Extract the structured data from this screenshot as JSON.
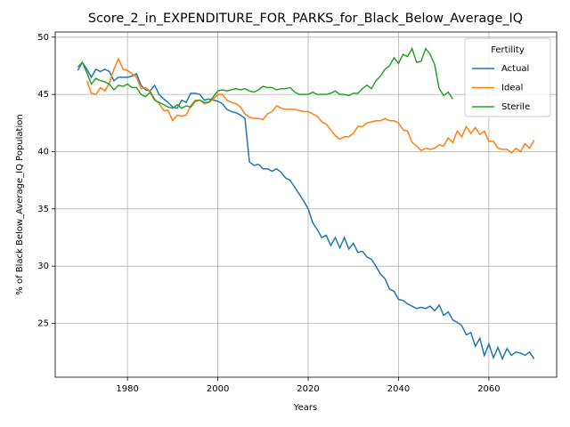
{
  "chart_data": {
    "type": "line",
    "title": "Score_2_in_EXPENDITURE_FOR_PARKS_for_Black_Below_Average_IQ",
    "xlabel": "Years",
    "ylabel": "% of Black Below_Average_IQ Population",
    "legend_title": "Fertility",
    "legend_loc": "upper right",
    "grid": true,
    "xlim": [
      1964,
      2075
    ],
    "ylim": [
      20.3,
      50.45
    ],
    "xticks": [
      1980,
      2000,
      2020,
      2040,
      2060
    ],
    "yticks": [
      25,
      30,
      35,
      40,
      45,
      50
    ],
    "x": [
      1969,
      1970,
      1971,
      1972,
      1973,
      1974,
      1975,
      1976,
      1977,
      1978,
      1979,
      1980,
      1981,
      1982,
      1983,
      1984,
      1985,
      1986,
      1987,
      1988,
      1989,
      1990,
      1991,
      1992,
      1993,
      1994,
      1995,
      1996,
      1997,
      1998,
      1999,
      2000,
      2001,
      2002,
      2003,
      2004,
      2005,
      2006,
      2007,
      2008,
      2009,
      2010,
      2011,
      2012,
      2013,
      2014,
      2015,
      2016,
      2017,
      2018,
      2019,
      2020,
      2021,
      2022,
      2023,
      2024,
      2025,
      2026,
      2027,
      2028,
      2029,
      2030,
      2031,
      2032,
      2033,
      2034,
      2035,
      2036,
      2037,
      2038,
      2039,
      2040,
      2041,
      2042,
      2043,
      2044,
      2045,
      2046,
      2047,
      2048,
      2049,
      2050,
      2051,
      2052,
      2053,
      2054,
      2055,
      2056,
      2057,
      2058,
      2059,
      2060,
      2061,
      2062,
      2063,
      2064,
      2065,
      2066,
      2067,
      2068,
      2069,
      2070
    ],
    "series": [
      {
        "name": "Actual",
        "color": "#1f77b4",
        "values": [
          47.1,
          47.8,
          47.2,
          46.5,
          47.2,
          47.0,
          47.2,
          47.0,
          46.2,
          46.5,
          46.5,
          46.5,
          46.6,
          46.8,
          45.8,
          45.4,
          45.3,
          45.8,
          45.0,
          44.6,
          44.3,
          43.9,
          43.8,
          44.5,
          44.3,
          45.1,
          45.1,
          45.0,
          44.5,
          44.6,
          44.5,
          44.4,
          44.2,
          43.7,
          43.5,
          43.4,
          43.2,
          42.9,
          39.1,
          38.8,
          38.9,
          38.5,
          38.5,
          38.3,
          38.5,
          38.2,
          37.7,
          37.5,
          36.9,
          36.3,
          35.7,
          35.0,
          33.8,
          33.2,
          32.5,
          32.7,
          31.8,
          32.5,
          31.6,
          32.5,
          31.5,
          32.0,
          31.2,
          31.3,
          30.8,
          30.6,
          30.0,
          29.3,
          28.9,
          28.0,
          27.8,
          27.1,
          27.0,
          26.7,
          26.5,
          26.3,
          26.4,
          26.3,
          26.5,
          26.1,
          26.6,
          25.7,
          26.0,
          25.3,
          25.1,
          24.8,
          24.0,
          24.2,
          23.0,
          23.7,
          22.2,
          23.2,
          22.0,
          22.9,
          21.9,
          22.8,
          22.2,
          22.5,
          22.4,
          22.2,
          22.5,
          21.9
        ]
      },
      {
        "name": "Ideal",
        "color": "#ff7f0e",
        "values": [
          null,
          null,
          46.2,
          45.1,
          45.0,
          45.6,
          45.3,
          46.0,
          47.2,
          48.1,
          47.2,
          47.1,
          46.8,
          46.5,
          45.5,
          45.6,
          45.3,
          44.6,
          44.2,
          43.6,
          43.6,
          42.7,
          43.2,
          43.1,
          43.2,
          44.0,
          44.5,
          44.5,
          44.2,
          44.3,
          44.6,
          45.0,
          45.0,
          44.5,
          44.3,
          44.2,
          43.9,
          43.3,
          43.0,
          42.9,
          42.9,
          42.8,
          43.3,
          43.5,
          44.0,
          43.8,
          43.7,
          43.7,
          43.7,
          43.6,
          43.5,
          43.5,
          43.3,
          43.1,
          42.6,
          42.4,
          41.9,
          41.4,
          41.1,
          41.3,
          41.3,
          41.6,
          42.2,
          42.2,
          42.5,
          42.6,
          42.7,
          42.7,
          42.9,
          42.7,
          42.7,
          42.5,
          41.9,
          41.8,
          40.8,
          40.5,
          40.1,
          40.3,
          40.2,
          40.3,
          40.6,
          40.5,
          41.2,
          40.8,
          41.8,
          41.3,
          42.2,
          41.6,
          42.1,
          41.5,
          41.8,
          40.9,
          40.9,
          40.3,
          40.2,
          40.2,
          39.9,
          40.3,
          40.0,
          40.7,
          40.3,
          41.0
        ]
      },
      {
        "name": "Sterile",
        "color": "#2ca02c",
        "values": [
          47.4,
          47.8,
          46.9,
          45.9,
          46.4,
          46.2,
          46.1,
          45.9,
          45.4,
          45.8,
          45.7,
          45.9,
          45.6,
          45.6,
          45.0,
          44.8,
          45.2,
          44.5,
          44.3,
          44.1,
          43.9,
          43.8,
          44.1,
          43.8,
          44.0,
          43.9,
          44.4,
          44.5,
          44.3,
          44.3,
          44.8,
          45.3,
          45.4,
          45.3,
          45.4,
          45.5,
          45.4,
          45.5,
          45.3,
          45.2,
          45.4,
          45.7,
          45.6,
          45.6,
          45.4,
          45.5,
          45.5,
          45.6,
          45.2,
          45.0,
          45.0,
          45.0,
          45.2,
          45.0,
          45.0,
          45.0,
          45.1,
          45.3,
          45.0,
          45.0,
          44.9,
          45.1,
          45.1,
          45.5,
          45.8,
          45.5,
          46.2,
          46.6,
          47.2,
          47.5,
          48.2,
          47.7,
          48.5,
          48.3,
          49.0,
          47.8,
          47.9,
          49.0,
          48.5,
          47.6,
          45.5,
          44.9,
          45.2,
          44.6,
          null,
          null,
          null,
          null,
          null,
          null,
          null,
          null,
          null,
          null,
          null,
          null,
          null,
          null,
          null,
          null,
          null,
          null
        ]
      }
    ]
  }
}
